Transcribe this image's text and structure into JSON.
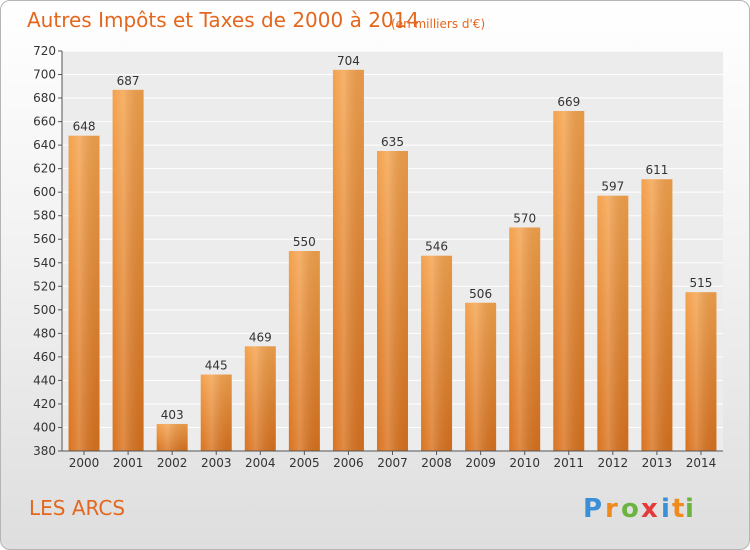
{
  "chart_data": {
    "type": "bar",
    "title": "Autres Impôts et Taxes de 2000 à 2014",
    "subtitle": "(en milliers d'€)",
    "categories": [
      "2000",
      "2001",
      "2002",
      "2003",
      "2004",
      "2005",
      "2006",
      "2007",
      "2008",
      "2009",
      "2010",
      "2011",
      "2012",
      "2013",
      "2014"
    ],
    "values": [
      648,
      687,
      403,
      445,
      469,
      550,
      704,
      635,
      546,
      506,
      570,
      669,
      597,
      611,
      515
    ],
    "ylim": [
      380,
      720
    ],
    "yticks": [
      380,
      400,
      420,
      440,
      460,
      480,
      500,
      520,
      540,
      560,
      580,
      600,
      620,
      640,
      660,
      680,
      700,
      720
    ],
    "grid": true,
    "bar_color": "#f4a24c",
    "bar_color_dark": "#d9721e"
  },
  "commune": "LES ARCS",
  "logo": {
    "letters": [
      "P",
      "r",
      "o",
      "x",
      "i",
      "t",
      "i"
    ],
    "colors": [
      "#3a8fd6",
      "#f08a1c",
      "#6cb33f",
      "#e33b3b",
      "#3a8fd6",
      "#f08a1c",
      "#6cb33f"
    ]
  }
}
